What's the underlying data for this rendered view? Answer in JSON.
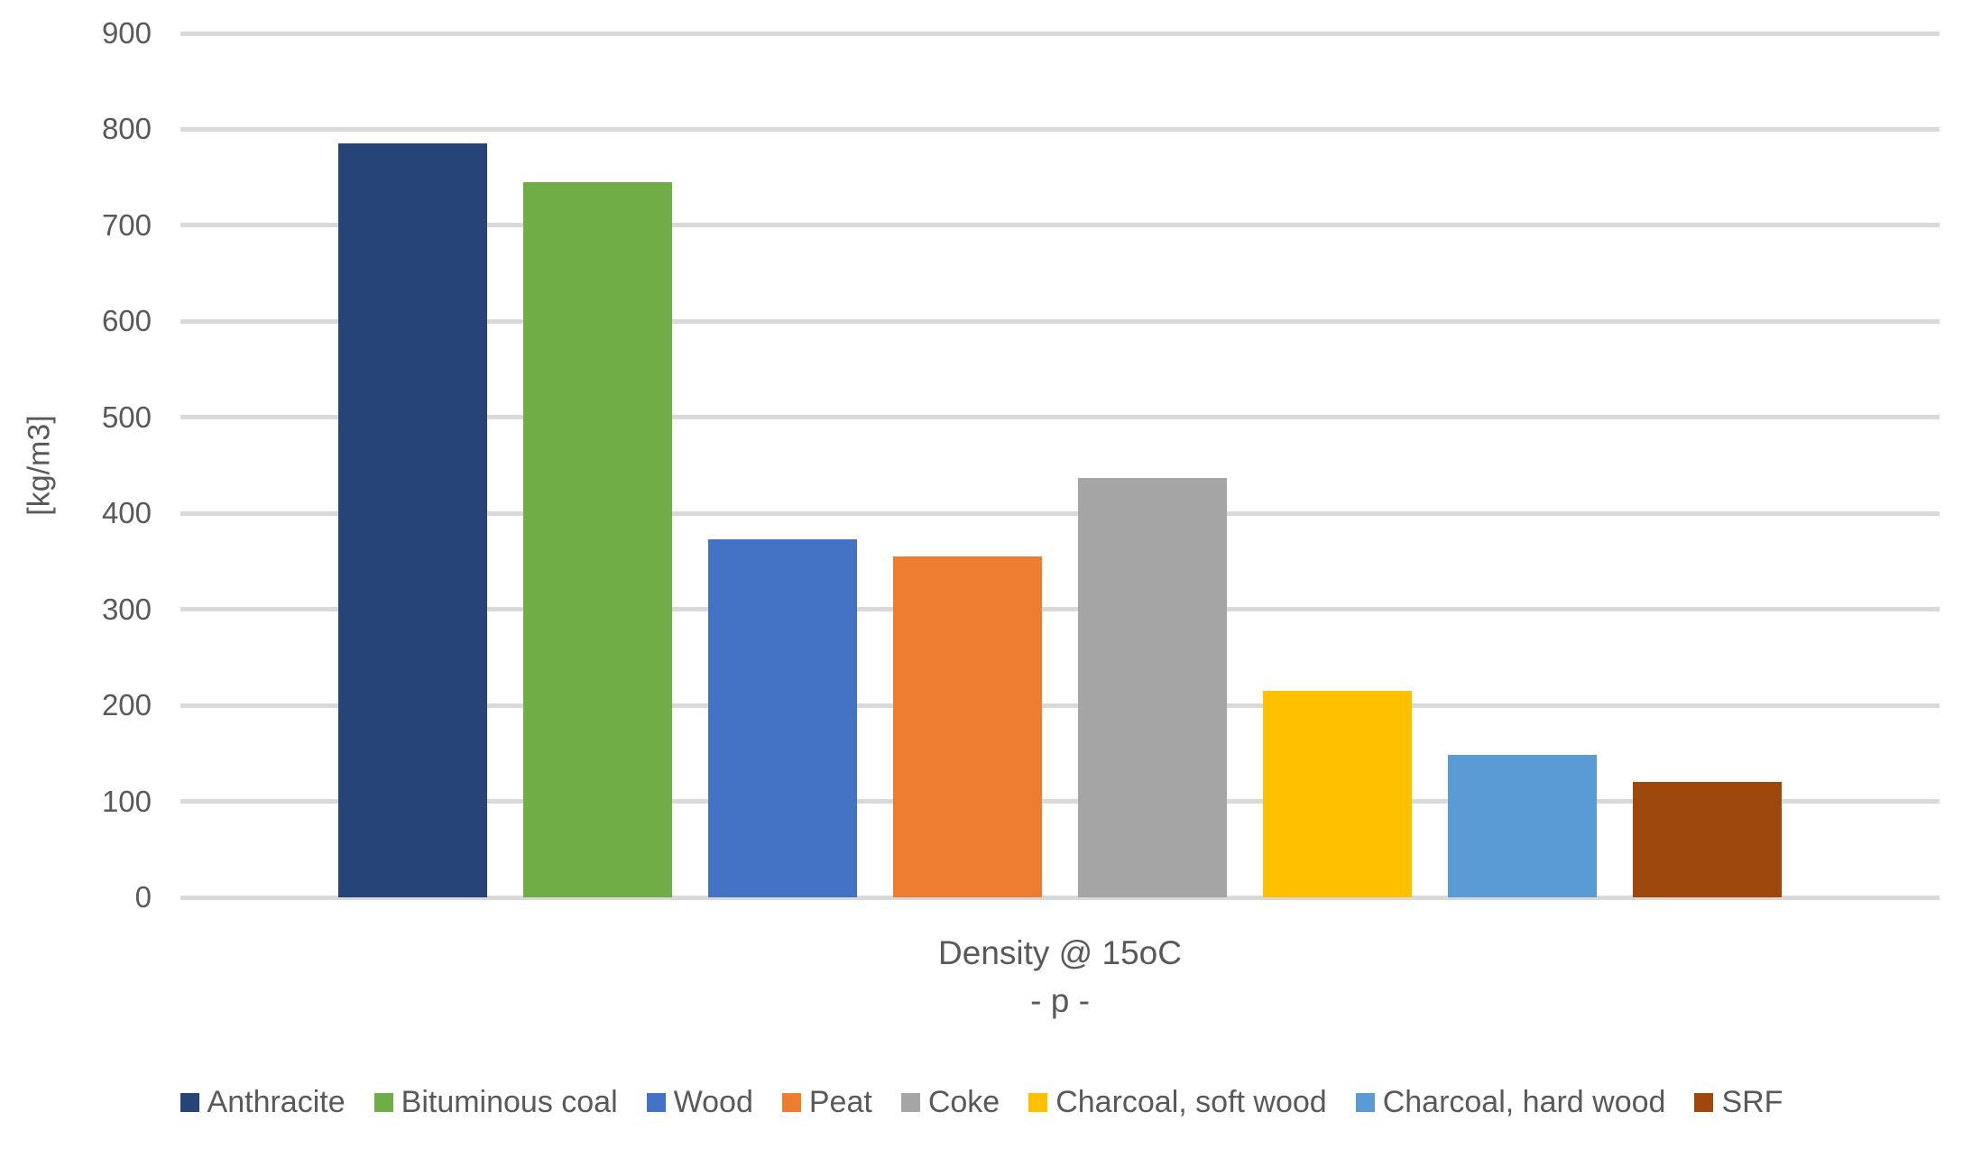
{
  "chart_data": {
    "type": "bar",
    "title": "Density @ 15oC",
    "subtitle": "- p -",
    "xlabel": "Density @ 15oC - p -",
    "ylabel": "[kg/m3]",
    "ylim": [
      0,
      900
    ],
    "ytick_step": 100,
    "yticks": [
      0,
      100,
      200,
      300,
      400,
      500,
      600,
      700,
      800,
      900
    ],
    "grid": true,
    "legend_position": "bottom",
    "categories": [
      "Density @ 15oC"
    ],
    "series": [
      {
        "name": "Anthracite",
        "value": 785,
        "color": "#264478"
      },
      {
        "name": "Bituminous coal",
        "value": 745,
        "color": "#70AD47"
      },
      {
        "name": "Wood",
        "value": 373,
        "color": "#4472C4"
      },
      {
        "name": "Peat",
        "value": 355,
        "color": "#ED7D31"
      },
      {
        "name": "Coke",
        "value": 437,
        "color": "#A5A5A5"
      },
      {
        "name": "Charcoal, soft wood",
        "value": 215,
        "color": "#FFC000"
      },
      {
        "name": "Charcoal, hard wood",
        "value": 148,
        "color": "#5B9BD5"
      },
      {
        "name": "SRF",
        "value": 120,
        "color": "#9E480E"
      }
    ]
  },
  "colors": {
    "text": "#595959",
    "gridline": "#D9D9D9",
    "background": "#FFFFFF"
  }
}
